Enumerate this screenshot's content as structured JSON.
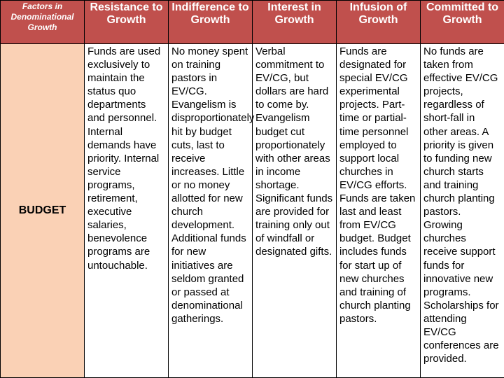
{
  "header": {
    "factors": "Factors in\nDenominational\nGrowth",
    "columns": [
      "Resistance to Growth",
      "Indifference to Growth",
      "Interest in Growth",
      "Infusion of Growth",
      "Committed to Growth"
    ]
  },
  "row": {
    "label": "BUDGET",
    "cells": [
      "Funds are used exclusively to maintain the status quo departments and personnel. Internal demands have priority. Internal service programs, retirement, executive salaries, benevolence programs are untouchable.",
      "No money spent on training pastors in EV/CG. Evangelism is disproportionately hit by budget cuts, last to receive increases. Little or no money allotted for new church development. Additional funds for new initiatives are seldom granted or passed at denominational gatherings.",
      "Verbal commitment to EV/CG, but dollars are hard to come by. Evangelism budget cut proportionately with other areas in income shortage. Significant funds are provided for training only out of windfall or designated gifts.",
      "Funds are designated for special EV/CG experimental projects.  Part-time or partial-time personnel employed to support local churches in EV/CG efforts. Funds are taken last and least from EV/CG budget. Budget includes funds for start up of new churches and training of church planting pastors.",
      "No funds are taken from effective EV/CG projects, regardless of short-fall in other areas.  A priority is given to funding new church starts and training church planting pastors. Growing churches receive support funds for innovative new programs. Scholarships for attending EV/CG conferences are provided."
    ]
  }
}
